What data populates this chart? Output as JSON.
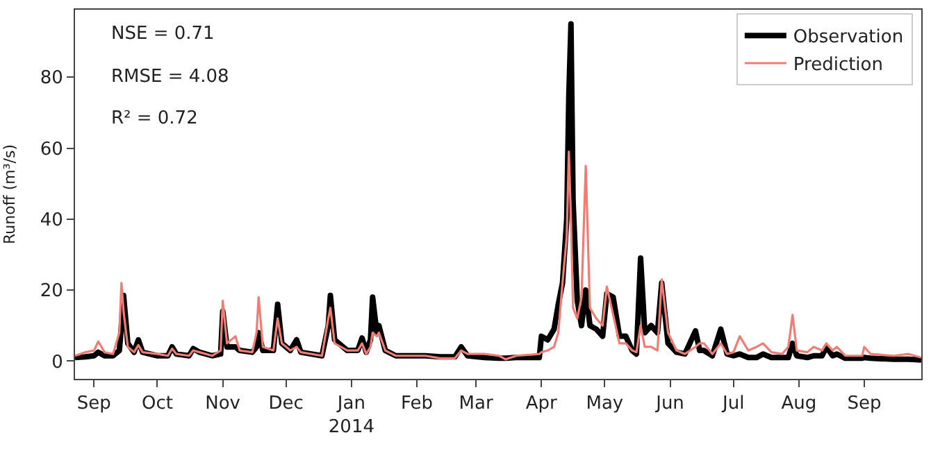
{
  "chart_data": {
    "type": "line",
    "ylabel": "Runoff (m³/s)",
    "annotations": [
      "NSE = 0.71",
      "RMSE = 4.08",
      "R² = 0.72"
    ],
    "x": [
      "2013-08-23",
      "2013-08-28",
      "2013-09-01",
      "2013-09-03",
      "2013-09-06",
      "2013-09-10",
      "2013-09-13",
      "2013-09-14",
      "2013-09-15",
      "2013-09-17",
      "2013-09-20",
      "2013-09-22",
      "2013-09-24",
      "2013-10-01",
      "2013-10-06",
      "2013-10-08",
      "2013-10-10",
      "2013-10-16",
      "2013-10-18",
      "2013-10-21",
      "2013-10-27",
      "2013-10-31",
      "2013-11-01",
      "2013-11-03",
      "2013-11-07",
      "2013-11-09",
      "2013-11-15",
      "2013-11-17",
      "2013-11-18",
      "2013-11-20",
      "2013-11-25",
      "2013-11-27",
      "2013-11-29",
      "2013-12-03",
      "2013-12-06",
      "2013-12-08",
      "2013-12-18",
      "2013-12-21",
      "2013-12-22",
      "2013-12-24",
      "2013-12-30",
      "2014-01-04",
      "2014-01-06",
      "2014-01-08",
      "2014-01-10",
      "2014-01-11",
      "2014-01-13",
      "2014-01-14",
      "2014-01-17",
      "2014-01-22",
      "2014-02-05",
      "2014-02-12",
      "2014-02-19",
      "2014-02-22",
      "2014-02-25",
      "2014-03-05",
      "2014-03-12",
      "2014-03-15",
      "2014-03-20",
      "2014-03-31",
      "2014-04-01",
      "2014-04-04",
      "2014-04-07",
      "2014-04-09",
      "2014-04-11",
      "2014-04-13",
      "2014-04-14",
      "2014-04-15",
      "2014-04-16",
      "2014-04-18",
      "2014-04-20",
      "2014-04-22",
      "2014-04-24",
      "2014-04-27",
      "2014-04-30",
      "2014-05-02",
      "2014-05-05",
      "2014-05-08",
      "2014-05-11",
      "2014-05-14",
      "2014-05-16",
      "2014-05-18",
      "2014-05-20",
      "2014-05-23",
      "2014-05-26",
      "2014-05-28",
      "2014-05-31",
      "2014-06-04",
      "2014-06-08",
      "2014-06-13",
      "2014-06-15",
      "2014-06-17",
      "2014-06-21",
      "2014-06-25",
      "2014-06-28",
      "2014-07-01",
      "2014-07-04",
      "2014-07-08",
      "2014-07-12",
      "2014-07-15",
      "2014-07-19",
      "2014-07-24",
      "2014-07-27",
      "2014-07-29",
      "2014-07-31",
      "2014-08-05",
      "2014-08-08",
      "2014-08-12",
      "2014-08-14",
      "2014-08-17",
      "2014-08-19",
      "2014-08-23",
      "2014-08-31",
      "2014-09-01",
      "2014-09-04",
      "2014-09-15",
      "2014-09-22",
      "2014-09-28"
    ],
    "series": [
      {
        "name": "Observation",
        "color": "#000000",
        "values": [
          1,
          1.2,
          1.5,
          2.5,
          1.5,
          1.5,
          3,
          10,
          18.5,
          5,
          2.5,
          6,
          2.5,
          1.5,
          1.5,
          4,
          2,
          1.5,
          3.5,
          2.5,
          1.5,
          2,
          14,
          4,
          4,
          3,
          2.5,
          4,
          8,
          3,
          3,
          16,
          5,
          3,
          6,
          2.5,
          1.5,
          10,
          18.5,
          6,
          3,
          3,
          6.5,
          2.5,
          6,
          18,
          8,
          10,
          3,
          1.5,
          1.5,
          1.2,
          1.2,
          4,
          1.5,
          1,
          0.8,
          0.8,
          1,
          1,
          7,
          6,
          9,
          16,
          22,
          40,
          75,
          95,
          45,
          17,
          10,
          20,
          10,
          9,
          7,
          19,
          18,
          7,
          7,
          3,
          2,
          29,
          8,
          10,
          8,
          22,
          5,
          2.5,
          2,
          8.5,
          3,
          3,
          1.5,
          9,
          2,
          1.5,
          2,
          1,
          1,
          2,
          1,
          1,
          1,
          5,
          1.5,
          1,
          1.5,
          1.5,
          4,
          1.5,
          2,
          0.8,
          0.8,
          1,
          0.8,
          0.5,
          0.5,
          0.3
        ]
      },
      {
        "name": "Prediction",
        "color": "#f07c74",
        "values": [
          1.5,
          2.5,
          3,
          5.5,
          2.5,
          2,
          8,
          22,
          14,
          4,
          2.5,
          4.5,
          2.5,
          2,
          1.5,
          3.5,
          2,
          1.5,
          3,
          2.5,
          1.5,
          3,
          17,
          5,
          7,
          3,
          2.5,
          8,
          18,
          4,
          3,
          12,
          5,
          3,
          4,
          2.5,
          1.5,
          12,
          15,
          5,
          3,
          3,
          5,
          2,
          4,
          8,
          7,
          8,
          3,
          1.5,
          1.5,
          0.8,
          0.8,
          3,
          2,
          2,
          1.5,
          0.5,
          1.5,
          2,
          2.5,
          3,
          4,
          8,
          22,
          35,
          59,
          40,
          15,
          12,
          18,
          55,
          15,
          12,
          10,
          21,
          13,
          5,
          5,
          3,
          2.5,
          10,
          4,
          4,
          3,
          23,
          8,
          3,
          2,
          4,
          5,
          5,
          2,
          5,
          2,
          2.5,
          7,
          3,
          4,
          5,
          2.5,
          2,
          4,
          13,
          3,
          2.5,
          4,
          3,
          5,
          3,
          4,
          1.5,
          1.5,
          4,
          2,
          1.5,
          2,
          1
        ]
      }
    ],
    "xlim": [
      "2013-08-23",
      "2014-09-28"
    ],
    "xticks": [
      {
        "value": "2013-09-01",
        "label": "Sep"
      },
      {
        "value": "2013-10-01",
        "label": "Oct"
      },
      {
        "value": "2013-11-01",
        "label": "Nov"
      },
      {
        "value": "2013-12-01",
        "label": "Dec"
      },
      {
        "value": "2014-01-01",
        "label": "Jan\n2014"
      },
      {
        "value": "2014-02-01",
        "label": "Feb"
      },
      {
        "value": "2014-03-01",
        "label": "Mar"
      },
      {
        "value": "2014-04-01",
        "label": "Apr"
      },
      {
        "value": "2014-05-01",
        "label": "May"
      },
      {
        "value": "2014-06-01",
        "label": "Jun"
      },
      {
        "value": "2014-07-01",
        "label": "Jul"
      },
      {
        "value": "2014-08-01",
        "label": "Aug"
      },
      {
        "value": "2014-09-01",
        "label": "Sep"
      }
    ],
    "ylim": [
      -5,
      99
    ],
    "yticks": [
      0,
      20,
      40,
      60,
      80
    ],
    "legend": "top right",
    "line_style": "solid",
    "marker": "none"
  }
}
